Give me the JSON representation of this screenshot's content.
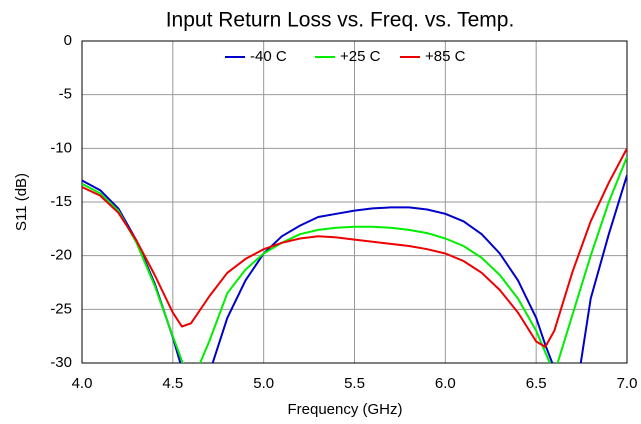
{
  "chart_data": {
    "type": "line",
    "title": "Input Return Loss vs. Freq. vs. Temp.",
    "x_label": "Frequency (GHz)",
    "y_label": "S11 (dB)",
    "x": [
      4.0,
      4.1,
      4.2,
      4.3,
      4.4,
      4.5,
      4.55,
      4.6,
      4.7,
      4.8,
      4.9,
      5.0,
      5.1,
      5.2,
      5.3,
      5.4,
      5.5,
      5.6,
      5.7,
      5.8,
      5.9,
      6.0,
      6.1,
      6.2,
      6.3,
      6.4,
      6.5,
      6.55,
      6.6,
      6.7,
      6.8,
      6.9,
      7.0
    ],
    "series": [
      {
        "name": "-40 C",
        "color": "#0000cc",
        "values": [
          -13.0,
          -13.9,
          -15.6,
          -18.6,
          -22.6,
          -27.6,
          -30.5,
          -35,
          -31,
          -25.8,
          -22.3,
          -19.8,
          -18.2,
          -17.2,
          -16.4,
          -16.1,
          -15.8,
          -15.6,
          -15.5,
          -15.5,
          -15.7,
          -16.1,
          -16.8,
          -18.0,
          -19.8,
          -22.3,
          -25.8,
          -28.3,
          -30.5,
          -35,
          -24,
          -18,
          -12.5
        ]
      },
      {
        "name": "+25 C",
        "color": "#00ee00",
        "values": [
          -13.3,
          -14.2,
          -15.8,
          -18.8,
          -22.8,
          -27.5,
          -29.8,
          -32,
          -28,
          -23.5,
          -21.3,
          -19.8,
          -18.8,
          -18.0,
          -17.6,
          -17.4,
          -17.3,
          -17.3,
          -17.4,
          -17.6,
          -17.9,
          -18.4,
          -19.1,
          -20.2,
          -21.8,
          -24.0,
          -27.0,
          -29.0,
          -31,
          -25.5,
          -20,
          -15,
          -10.8
        ]
      },
      {
        "name": "+85 C",
        "color": "#ee0000",
        "values": [
          -13.6,
          -14.4,
          -16.0,
          -18.6,
          -21.8,
          -25.3,
          -26.6,
          -26.3,
          -23.8,
          -21.6,
          -20.3,
          -19.4,
          -18.8,
          -18.4,
          -18.2,
          -18.3,
          -18.5,
          -18.7,
          -18.9,
          -19.1,
          -19.4,
          -19.8,
          -20.5,
          -21.6,
          -23.2,
          -25.3,
          -28.0,
          -28.5,
          -27.0,
          -21.5,
          -16.8,
          -13.2,
          -10.0
        ]
      }
    ],
    "xlim": [
      4.0,
      7.0
    ],
    "xticks": [
      {
        "value": 4,
        "label": "4.0"
      },
      4.5,
      {
        "value": 5,
        "label": "5.0"
      },
      5.5,
      {
        "value": 6,
        "label": "6.0"
      },
      6.5,
      {
        "value": 7,
        "label": "7.0"
      }
    ],
    "ylim": [
      -30,
      0
    ],
    "yticks": [
      0,
      -5,
      -10,
      -15,
      -20,
      -25,
      -30
    ],
    "grid": true,
    "legend": "top"
  }
}
